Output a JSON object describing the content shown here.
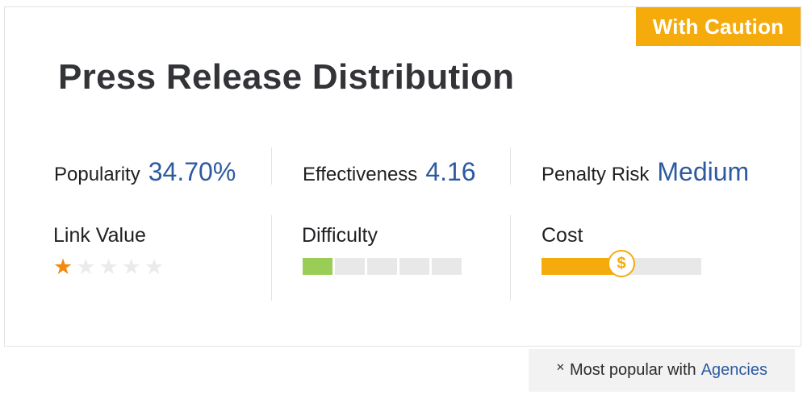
{
  "card": {
    "badge": "With Caution",
    "title": "Press Release Distribution"
  },
  "metrics": {
    "popularity": {
      "label": "Popularity",
      "value": "34.70%"
    },
    "effectiveness": {
      "label": "Effectiveness",
      "value": "4.16"
    },
    "penalty_risk": {
      "label": "Penalty Risk",
      "value": "Medium"
    }
  },
  "ratings": {
    "link_value": {
      "label": "Link Value",
      "stars_filled": 1,
      "stars_total": 5
    },
    "difficulty": {
      "label": "Difficulty",
      "segments_filled": 1,
      "segments_total": 5
    },
    "cost": {
      "label": "Cost",
      "level_percent": 50,
      "knob_icon": "dollar-icon"
    }
  },
  "footer": {
    "icon": "close-icon",
    "text": "Most popular with",
    "link": "Agencies"
  },
  "colors": {
    "accent_orange": "#f5ab0b",
    "value_blue": "#2d5aa0",
    "star_orange": "#f08a13",
    "difficulty_green": "#9acd56"
  }
}
